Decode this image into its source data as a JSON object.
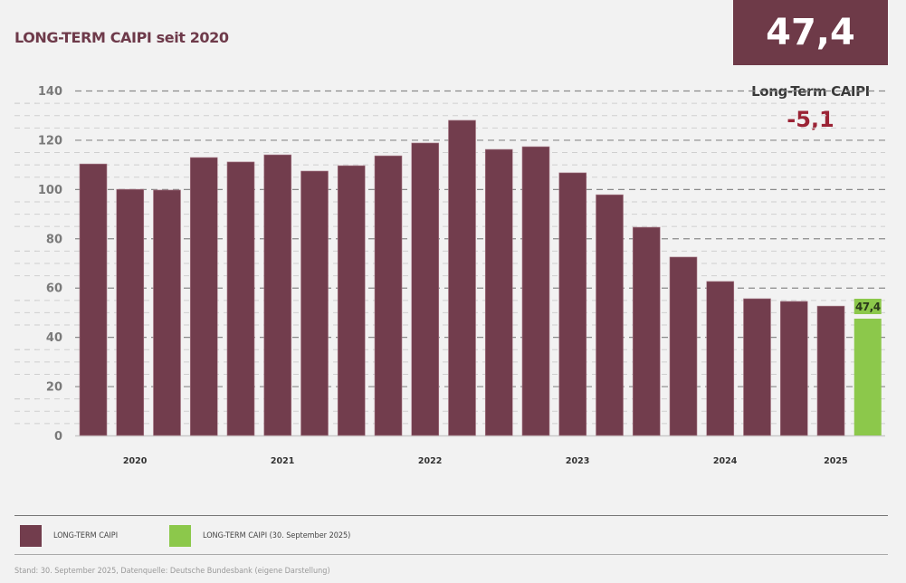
{
  "header": {
    "title": "LONG-TERM CAIPI seit 2020",
    "kpi_value": "47,4",
    "kpi_label": "Long-Term CAIPI",
    "kpi_delta": "-5,1"
  },
  "colors": {
    "bar": "#723d4d",
    "highlight": "#8cc84b",
    "title": "#6e3a4a",
    "delta": "#9b2335",
    "kpi_box": "#6e3a48"
  },
  "chart_data": {
    "type": "bar",
    "title": "LONG-TERM CAIPI seit 2020",
    "xlabel": "",
    "ylabel": "",
    "ylim": [
      0,
      140
    ],
    "yticks": [
      0,
      20,
      40,
      60,
      80,
      100,
      120,
      140
    ],
    "grid": true,
    "year_labels": [
      {
        "label": "2020",
        "after_bar": 1.5
      },
      {
        "label": "2021",
        "after_bar": 5.5
      },
      {
        "label": "2022",
        "after_bar": 9.5
      },
      {
        "label": "2023",
        "after_bar": 13.5
      },
      {
        "label": "2024",
        "after_bar": 17.5
      },
      {
        "label": "2025",
        "after_bar": 20.5
      }
    ],
    "series": [
      {
        "name": "LONG-TERM CAIPI",
        "values": [
          110.2,
          99.9,
          99.6,
          112.8,
          111.0,
          113.9,
          107.3,
          109.5,
          113.5,
          118.7,
          127.9,
          116.1,
          117.2,
          106.6,
          97.7,
          84.5,
          72.4,
          62.5,
          55.5,
          54.4,
          52.5
        ]
      },
      {
        "name": "LONG-TERM CAIPI (30. September 2025)",
        "values": [
          47.4
        ],
        "data_label": "47,4"
      }
    ]
  },
  "legend": {
    "items": [
      {
        "label": "LONG-TERM CAIPI"
      },
      {
        "label": "LONG-TERM CAIPI (30. September 2025)"
      }
    ]
  },
  "footnote": "Stand: 30. September 2025, Datenquelle: Deutsche Bundesbank (eigene Darstellung)"
}
